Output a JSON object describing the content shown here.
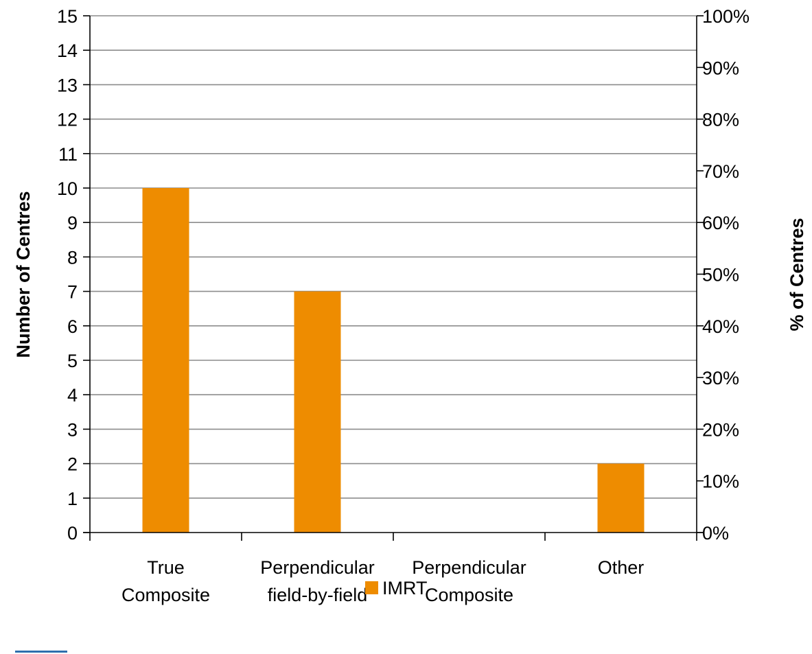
{
  "chart_data": {
    "type": "bar",
    "title": "",
    "categories": [
      [
        "True",
        "Composite"
      ],
      [
        "Perpendicular",
        "field-by-field"
      ],
      [
        "Perpendicular",
        "Composite"
      ],
      [
        "Other"
      ]
    ],
    "series": [
      {
        "name": "IMRT",
        "values": [
          10,
          7,
          0,
          2
        ],
        "color": "#EE8C00"
      }
    ],
    "ylabel": "Number of Centres",
    "ylim": [
      0,
      15
    ],
    "yticks": [
      "0",
      "1",
      "2",
      "3",
      "4",
      "5",
      "6",
      "7",
      "8",
      "9",
      "10",
      "11",
      "12",
      "13",
      "14",
      "15"
    ],
    "y2label": "% of Centres",
    "y2lim": [
      0,
      100
    ],
    "y2ticks": [
      "0%",
      "10%",
      "20%",
      "30%",
      "40%",
      "50%",
      "60%",
      "70%",
      "80%",
      "90%",
      "100%"
    ],
    "grid": true,
    "legend_position": "bottom-center"
  }
}
